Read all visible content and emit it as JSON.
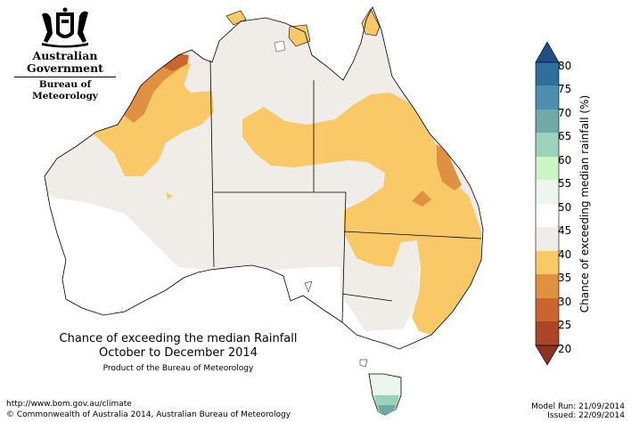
{
  "agency": {
    "government": "Australian Government",
    "bureau": "Bureau of Meteorology"
  },
  "map": {
    "title": "Chance of exceeding the median Rainfall",
    "period": "October to December 2014",
    "product_line": "Product of the Bureau of Meteorology",
    "region": "Australia"
  },
  "legend": {
    "title": "Chance of exceeding median rainfall (%)",
    "ticks": [
      "80",
      "75",
      "70",
      "65",
      "60",
      "55",
      "50",
      "45",
      "40",
      "35",
      "30",
      "25",
      "20"
    ],
    "bands": [
      {
        "range": "75-80",
        "color": "#2f6fa0"
      },
      {
        "range": "70-75",
        "color": "#4c8fae"
      },
      {
        "range": "65-70",
        "color": "#6fa9a8"
      },
      {
        "range": "60-65",
        "color": "#9bd2b9"
      },
      {
        "range": "55-60",
        "color": "#cdf5c8"
      },
      {
        "range": "50-55",
        "color": "#ecf6ec"
      },
      {
        "range": "45-50",
        "color": "#ffffff"
      },
      {
        "range": "40-45",
        "color": "#f0ede8"
      },
      {
        "range": "35-40",
        "color": "#f9c867"
      },
      {
        "range": "30-35",
        "color": "#df9040"
      },
      {
        "range": "25-30",
        "color": "#cc6430"
      },
      {
        "range": "20-25",
        "color": "#ab4527"
      }
    ]
  },
  "footer": {
    "url": "http://www.bom.gov.au/climate",
    "copyright": "© Commonwealth of Australia 2014, Australian Bureau of Meteorology",
    "model_run": "Model Run: 21/09/2014",
    "issued": "Issued: 22/09/2014"
  }
}
